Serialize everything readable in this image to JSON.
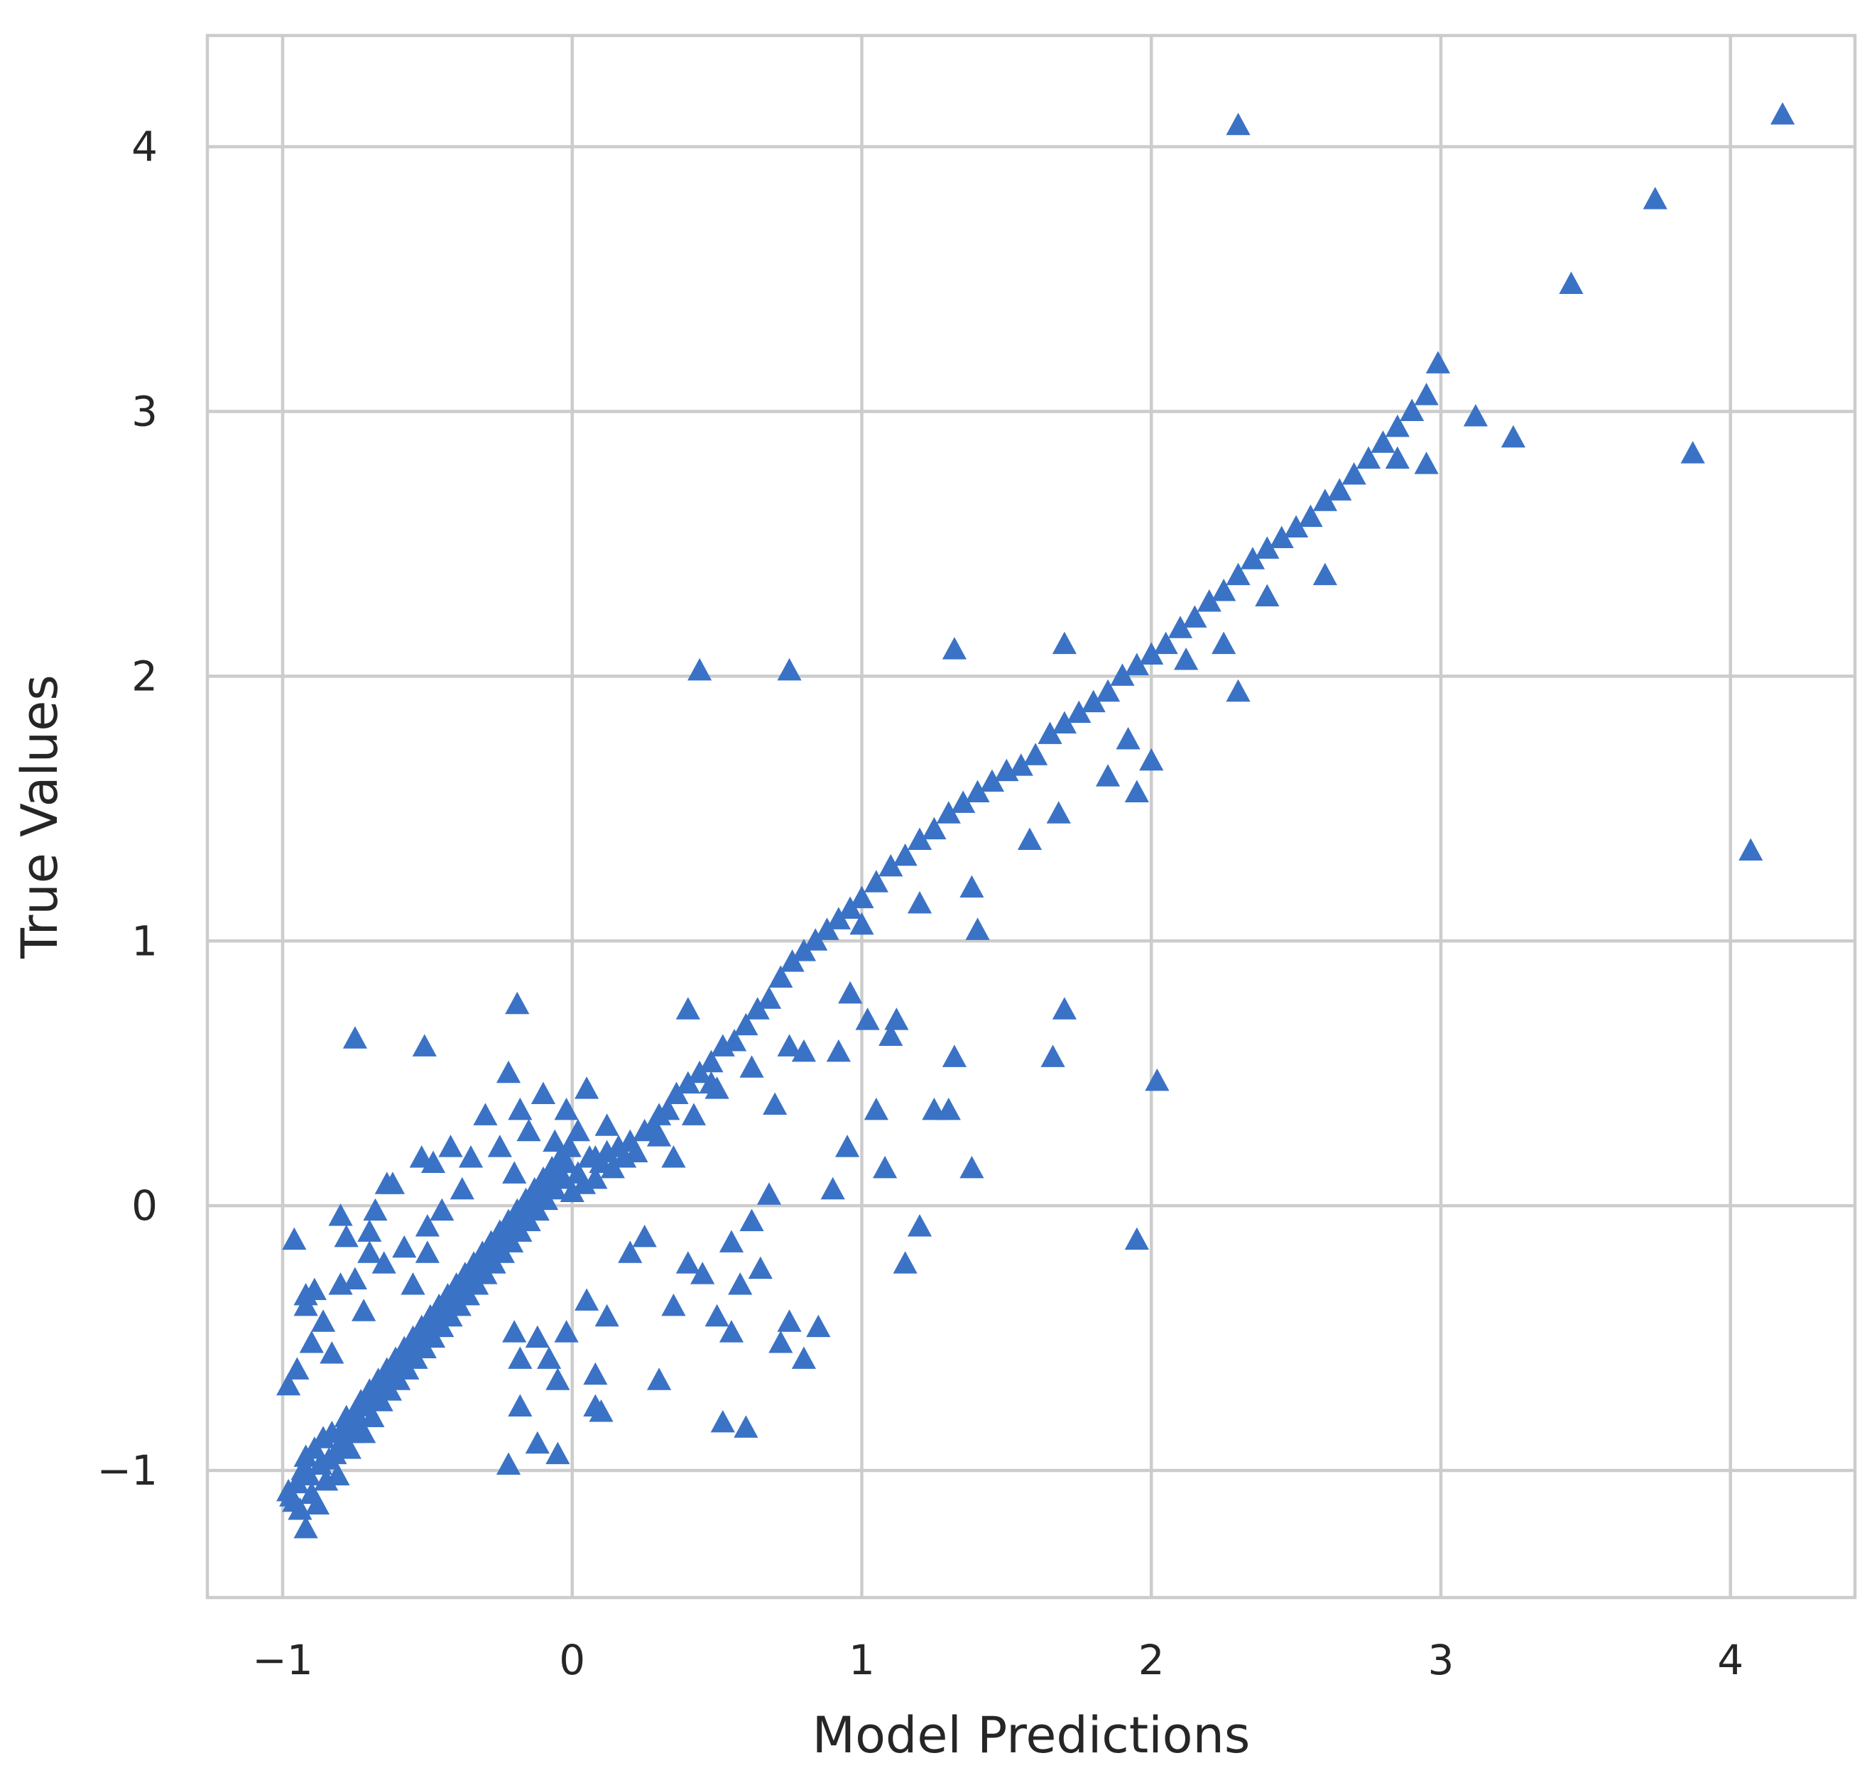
{
  "chart_data": {
    "type": "scatter",
    "title": "",
    "xlabel": "Model Predictions",
    "ylabel": "True Values",
    "xlim": [
      -1.26,
      4.43
    ],
    "ylim": [
      -1.48,
      4.42
    ],
    "x_ticks": [
      -1,
      0,
      1,
      2,
      3,
      4
    ],
    "y_ticks": [
      -1,
      0,
      1,
      2,
      3,
      4
    ],
    "x_tick_labels": [
      "−1",
      "0",
      "1",
      "2",
      "3",
      "4"
    ],
    "y_tick_labels": [
      "−1",
      "0",
      "1",
      "2",
      "3",
      "4"
    ],
    "grid": true,
    "marker": "triangle-up",
    "color": "#3a72c6",
    "points": [
      [
        -0.98,
        -1.08
      ],
      [
        -0.97,
        -1.1
      ],
      [
        -0.96,
        -1.12
      ],
      [
        -0.95,
        -1.05
      ],
      [
        -0.94,
        -1.15
      ],
      [
        -0.93,
        -1.0
      ],
      [
        -0.92,
        -0.95
      ],
      [
        -0.91,
        -1.02
      ],
      [
        -0.9,
        -1.09
      ],
      [
        -0.89,
        -0.92
      ],
      [
        -0.88,
        -1.13
      ],
      [
        -0.87,
        -0.98
      ],
      [
        -0.86,
        -0.88
      ],
      [
        -0.85,
        -1.04
      ],
      [
        -0.84,
        -0.96
      ],
      [
        -0.83,
        -0.86
      ],
      [
        -0.82,
        -0.94
      ],
      [
        -0.81,
        -1.02
      ],
      [
        -0.8,
        -0.9
      ],
      [
        -0.79,
        -0.84
      ],
      [
        -0.78,
        -0.8
      ],
      [
        -0.77,
        -0.92
      ],
      [
        -0.76,
        -0.86
      ],
      [
        -0.75,
        -0.78
      ],
      [
        -0.74,
        -0.82
      ],
      [
        -0.73,
        -0.74
      ],
      [
        -0.72,
        -0.86
      ],
      [
        -0.71,
        -0.76
      ],
      [
        -0.7,
        -0.7
      ],
      [
        -0.69,
        -0.8
      ],
      [
        -0.68,
        -0.72
      ],
      [
        -0.67,
        -0.66
      ],
      [
        -0.66,
        -0.74
      ],
      [
        -0.65,
        -0.68
      ],
      [
        -0.64,
        -0.62
      ],
      [
        -0.63,
        -0.7
      ],
      [
        -0.62,
        -0.64
      ],
      [
        -0.61,
        -0.58
      ],
      [
        -0.6,
        -0.66
      ],
      [
        -0.59,
        -0.6
      ],
      [
        -0.58,
        -0.54
      ],
      [
        -0.57,
        -0.62
      ],
      [
        -0.56,
        -0.56
      ],
      [
        -0.55,
        -0.5
      ],
      [
        -0.54,
        -0.58
      ],
      [
        -0.53,
        -0.52
      ],
      [
        -0.52,
        -0.46
      ],
      [
        -0.51,
        -0.54
      ],
      [
        -0.5,
        -0.48
      ],
      [
        -0.49,
        -0.42
      ],
      [
        -0.48,
        -0.5
      ],
      [
        -0.47,
        -0.44
      ],
      [
        -0.46,
        -0.38
      ],
      [
        -0.45,
        -0.46
      ],
      [
        -0.44,
        -0.4
      ],
      [
        -0.43,
        -0.34
      ],
      [
        -0.42,
        -0.42
      ],
      [
        -0.41,
        -0.36
      ],
      [
        -0.4,
        -0.3
      ],
      [
        -0.39,
        -0.38
      ],
      [
        -0.38,
        -0.32
      ],
      [
        -0.37,
        -0.26
      ],
      [
        -0.36,
        -0.34
      ],
      [
        -0.35,
        -0.28
      ],
      [
        -0.34,
        -0.22
      ],
      [
        -0.33,
        -0.3
      ],
      [
        -0.32,
        -0.24
      ],
      [
        -0.31,
        -0.18
      ],
      [
        -0.3,
        -0.26
      ],
      [
        -0.29,
        -0.2
      ],
      [
        -0.28,
        -0.14
      ],
      [
        -0.27,
        -0.22
      ],
      [
        -0.26,
        -0.16
      ],
      [
        -0.25,
        -0.1
      ],
      [
        -0.24,
        -0.18
      ],
      [
        -0.23,
        -0.12
      ],
      [
        -0.22,
        -0.06
      ],
      [
        -0.21,
        -0.14
      ],
      [
        -0.2,
        -0.08
      ],
      [
        -0.19,
        -0.02
      ],
      [
        -0.18,
        -0.1
      ],
      [
        -0.17,
        -0.04
      ],
      [
        -0.16,
        0.02
      ],
      [
        -0.15,
        -0.06
      ],
      [
        -0.14,
        0.0
      ],
      [
        -0.13,
        0.06
      ],
      [
        -0.12,
        -0.02
      ],
      [
        -0.11,
        0.04
      ],
      [
        -0.1,
        0.1
      ],
      [
        -0.09,
        0.02
      ],
      [
        -0.08,
        0.08
      ],
      [
        -0.07,
        0.14
      ],
      [
        -0.06,
        0.06
      ],
      [
        -0.05,
        0.12
      ],
      [
        -0.04,
        0.18
      ],
      [
        -0.03,
        0.1
      ],
      [
        -0.02,
        0.16
      ],
      [
        -0.01,
        0.22
      ],
      [
        0.0,
        0.05
      ],
      [
        0.02,
        0.12
      ],
      [
        0.04,
        0.08
      ],
      [
        0.06,
        0.18
      ],
      [
        0.08,
        0.1
      ],
      [
        0.1,
        0.16
      ],
      [
        0.12,
        0.2
      ],
      [
        0.14,
        0.14
      ],
      [
        0.16,
        0.22
      ],
      [
        0.18,
        0.18
      ],
      [
        0.2,
        0.24
      ],
      [
        0.22,
        0.2
      ],
      [
        0.25,
        0.28
      ],
      [
        0.28,
        0.3
      ],
      [
        0.3,
        0.34
      ],
      [
        0.33,
        0.36
      ],
      [
        0.36,
        0.42
      ],
      [
        0.4,
        0.46
      ],
      [
        0.44,
        0.5
      ],
      [
        0.48,
        0.54
      ],
      [
        0.52,
        0.6
      ],
      [
        0.56,
        0.62
      ],
      [
        0.6,
        0.68
      ],
      [
        0.64,
        0.74
      ],
      [
        0.68,
        0.78
      ],
      [
        0.72,
        0.86
      ],
      [
        0.76,
        0.92
      ],
      [
        0.8,
        0.96
      ],
      [
        0.84,
        1.0
      ],
      [
        0.88,
        1.04
      ],
      [
        0.92,
        1.08
      ],
      [
        0.96,
        1.12
      ],
      [
        1.0,
        1.16
      ],
      [
        1.05,
        1.22
      ],
      [
        1.1,
        1.28
      ],
      [
        1.15,
        1.32
      ],
      [
        1.2,
        1.38
      ],
      [
        1.25,
        1.42
      ],
      [
        1.3,
        1.48
      ],
      [
        1.35,
        1.52
      ],
      [
        1.4,
        1.56
      ],
      [
        1.45,
        1.6
      ],
      [
        1.5,
        1.64
      ],
      [
        1.55,
        1.66
      ],
      [
        1.6,
        1.7
      ],
      [
        1.65,
        1.78
      ],
      [
        1.7,
        1.82
      ],
      [
        1.75,
        1.86
      ],
      [
        1.8,
        1.9
      ],
      [
        1.85,
        1.94
      ],
      [
        1.9,
        2.0
      ],
      [
        1.95,
        2.04
      ],
      [
        2.0,
        2.08
      ],
      [
        2.05,
        2.12
      ],
      [
        2.1,
        2.18
      ],
      [
        2.15,
        2.22
      ],
      [
        2.2,
        2.28
      ],
      [
        2.25,
        2.32
      ],
      [
        2.3,
        2.38
      ],
      [
        2.35,
        2.44
      ],
      [
        2.4,
        2.48
      ],
      [
        2.45,
        2.52
      ],
      [
        2.5,
        2.56
      ],
      [
        2.55,
        2.6
      ],
      [
        2.6,
        2.66
      ],
      [
        2.65,
        2.7
      ],
      [
        2.7,
        2.76
      ],
      [
        2.75,
        2.82
      ],
      [
        2.8,
        2.88
      ],
      [
        2.85,
        2.94
      ],
      [
        2.9,
        3.0
      ],
      [
        2.95,
        3.06
      ],
      [
        -0.98,
        -0.68
      ],
      [
        -0.95,
        -0.62
      ],
      [
        -0.92,
        -0.38
      ],
      [
        -0.9,
        -0.52
      ],
      [
        -0.86,
        -0.44
      ],
      [
        -0.83,
        -0.56
      ],
      [
        -0.8,
        -0.3
      ],
      [
        -0.78,
        -0.12
      ],
      [
        -0.75,
        -0.28
      ],
      [
        -0.72,
        -0.4
      ],
      [
        -0.7,
        -0.18
      ],
      [
        -0.68,
        -0.02
      ],
      [
        -0.65,
        -0.22
      ],
      [
        -0.62,
        0.08
      ],
      [
        -0.58,
        -0.16
      ],
      [
        -0.55,
        -0.3
      ],
      [
        -0.52,
        0.18
      ],
      [
        -0.5,
        -0.08
      ],
      [
        -0.48,
        0.16
      ],
      [
        -0.45,
        -0.02
      ],
      [
        -0.42,
        0.22
      ],
      [
        -0.38,
        0.06
      ],
      [
        -0.35,
        0.18
      ],
      [
        -0.3,
        0.34
      ],
      [
        -0.25,
        0.22
      ],
      [
        -0.22,
        0.5
      ],
      [
        -0.2,
        0.12
      ],
      [
        -0.18,
        0.36
      ],
      [
        -0.15,
        0.28
      ],
      [
        -0.1,
        0.42
      ],
      [
        -0.06,
        0.24
      ],
      [
        -0.02,
        0.36
      ],
      [
        0.02,
        0.28
      ],
      [
        0.05,
        0.44
      ],
      [
        0.08,
        0.18
      ],
      [
        0.12,
        0.3
      ],
      [
        0.3,
        0.26
      ],
      [
        0.35,
        0.18
      ],
      [
        0.42,
        0.34
      ],
      [
        0.5,
        0.44
      ],
      [
        -0.96,
        -0.13
      ],
      [
        -0.92,
        -0.34
      ],
      [
        -0.75,
        0.63
      ],
      [
        -0.51,
        0.6
      ],
      [
        -0.19,
        0.76
      ],
      [
        -0.89,
        -0.32
      ],
      [
        -0.8,
        -0.04
      ],
      [
        -0.7,
        -0.1
      ],
      [
        -0.64,
        0.08
      ],
      [
        -0.5,
        -0.18
      ],
      [
        -0.2,
        -0.48
      ],
      [
        -0.18,
        -0.58
      ],
      [
        -0.12,
        -0.5
      ],
      [
        -0.08,
        -0.58
      ],
      [
        -0.05,
        -0.66
      ],
      [
        -0.02,
        -0.48
      ],
      [
        0.05,
        -0.36
      ],
      [
        0.08,
        -0.64
      ],
      [
        0.1,
        -0.78
      ],
      [
        0.12,
        -0.42
      ],
      [
        0.2,
        -0.18
      ],
      [
        0.25,
        -0.12
      ],
      [
        0.3,
        -0.66
      ],
      [
        0.35,
        -0.38
      ],
      [
        0.4,
        -0.22
      ],
      [
        0.45,
        -0.26
      ],
      [
        0.5,
        -0.42
      ],
      [
        0.52,
        -0.82
      ],
      [
        0.55,
        -0.14
      ],
      [
        0.58,
        -0.3
      ],
      [
        0.6,
        -0.84
      ],
      [
        0.62,
        -0.06
      ],
      [
        0.65,
        -0.24
      ],
      [
        0.68,
        0.04
      ],
      [
        0.72,
        -0.52
      ],
      [
        0.75,
        -0.44
      ],
      [
        0.8,
        -0.58
      ],
      [
        0.85,
        -0.46
      ],
      [
        0.9,
        0.06
      ],
      [
        0.95,
        0.22
      ],
      [
        -0.22,
        -0.98
      ],
      [
        -0.12,
        -0.9
      ],
      [
        -0.05,
        -0.94
      ],
      [
        -0.18,
        -0.76
      ],
      [
        0.08,
        -0.76
      ],
      [
        -0.92,
        -1.22
      ],
      [
        0.55,
        -0.48
      ],
      [
        0.4,
        0.74
      ],
      [
        0.48,
        0.46
      ],
      [
        0.62,
        0.52
      ],
      [
        0.7,
        0.38
      ],
      [
        0.75,
        0.6
      ],
      [
        0.8,
        0.58
      ],
      [
        0.92,
        0.58
      ],
      [
        0.96,
        0.8
      ],
      [
        1.02,
        0.7
      ],
      [
        1.05,
        0.36
      ],
      [
        1.08,
        0.14
      ],
      [
        1.1,
        0.64
      ],
      [
        1.12,
        0.7
      ],
      [
        1.15,
        -0.22
      ],
      [
        1.2,
        -0.08
      ],
      [
        1.25,
        0.36
      ],
      [
        1.3,
        0.36
      ],
      [
        1.32,
        0.56
      ],
      [
        1.38,
        0.14
      ],
      [
        1.4,
        1.04
      ],
      [
        1.38,
        1.2
      ],
      [
        1.2,
        1.14
      ],
      [
        1.0,
        1.06
      ],
      [
        1.58,
        1.38
      ],
      [
        1.68,
        1.48
      ],
      [
        1.66,
        0.56
      ],
      [
        1.7,
        0.74
      ],
      [
        1.95,
        -0.13
      ],
      [
        2.02,
        0.47
      ],
      [
        2.0,
        1.68
      ],
      [
        1.95,
        1.56
      ],
      [
        1.92,
        1.76
      ],
      [
        1.85,
        1.62
      ],
      [
        2.3,
        1.94
      ],
      [
        2.6,
        2.38
      ],
      [
        2.4,
        2.3
      ],
      [
        2.25,
        2.12
      ],
      [
        2.12,
        2.06
      ],
      [
        1.32,
        2.1
      ],
      [
        0.44,
        2.02
      ],
      [
        0.75,
        2.02
      ],
      [
        1.7,
        2.12
      ],
      [
        2.3,
        4.08
      ],
      [
        2.85,
        2.82
      ],
      [
        2.95,
        2.8
      ],
      [
        3.12,
        2.98
      ],
      [
        3.25,
        2.9
      ],
      [
        2.99,
        3.18
      ],
      [
        3.45,
        3.48
      ],
      [
        3.74,
        3.8
      ],
      [
        3.87,
        2.84
      ],
      [
        4.18,
        4.12
      ],
      [
        4.07,
        1.34
      ]
    ]
  }
}
